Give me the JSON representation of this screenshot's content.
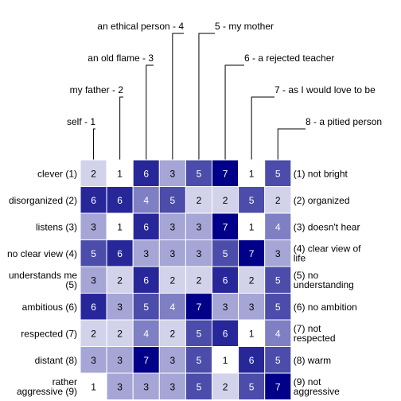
{
  "chart_data": {
    "type": "heatmap",
    "title": "",
    "columns": [
      "self - 1",
      "my father - 2",
      "an old flame - 3",
      "an ethical person - 4",
      "5 - my mother",
      "6 - a rejected teacher",
      "7 - as I would love to be",
      "8 - a pitied person"
    ],
    "rows": [
      {
        "left": [
          "clever (1)"
        ],
        "right": [
          "(1) not bright"
        ],
        "values": [
          2,
          1,
          6,
          3,
          5,
          7,
          1,
          5
        ]
      },
      {
        "left": [
          "disorganized (2)"
        ],
        "right": [
          "(2) organized"
        ],
        "values": [
          6,
          6,
          4,
          5,
          2,
          2,
          5,
          2
        ]
      },
      {
        "left": [
          "listens (3)"
        ],
        "right": [
          "(3) doesn't hear"
        ],
        "values": [
          3,
          1,
          6,
          3,
          3,
          7,
          1,
          4
        ]
      },
      {
        "left": [
          "no clear view (4)"
        ],
        "right": [
          "(4) clear view of",
          "life"
        ],
        "values": [
          5,
          6,
          3,
          3,
          3,
          5,
          7,
          3
        ]
      },
      {
        "left": [
          "understands me",
          "(5)"
        ],
        "right": [
          "(5) no",
          "understanding"
        ],
        "values": [
          3,
          2,
          6,
          2,
          2,
          6,
          2,
          5
        ]
      },
      {
        "left": [
          "ambitious (6)"
        ],
        "right": [
          "(6) no ambition"
        ],
        "values": [
          6,
          3,
          5,
          4,
          7,
          3,
          3,
          5
        ]
      },
      {
        "left": [
          "respected (7)"
        ],
        "right": [
          "(7) not",
          "respected"
        ],
        "values": [
          2,
          2,
          4,
          2,
          5,
          6,
          1,
          4
        ]
      },
      {
        "left": [
          "distant (8)"
        ],
        "right": [
          "(8) warm"
        ],
        "values": [
          3,
          3,
          7,
          3,
          5,
          1,
          6,
          5
        ]
      },
      {
        "left": [
          "rather",
          "aggressive (9)"
        ],
        "right": [
          "(9) not",
          "aggressive"
        ],
        "values": [
          1,
          3,
          3,
          3,
          5,
          2,
          5,
          7
        ]
      }
    ],
    "value_range": [
      1,
      7
    ],
    "colors": {
      "1": "#ffffff",
      "2": "#d2d2ea",
      "3": "#a5a5d6",
      "4": "#7f7fc4",
      "5": "#4c4caa",
      "6": "#27279a",
      "7": "#000088"
    },
    "grid": false,
    "legend": "none"
  }
}
